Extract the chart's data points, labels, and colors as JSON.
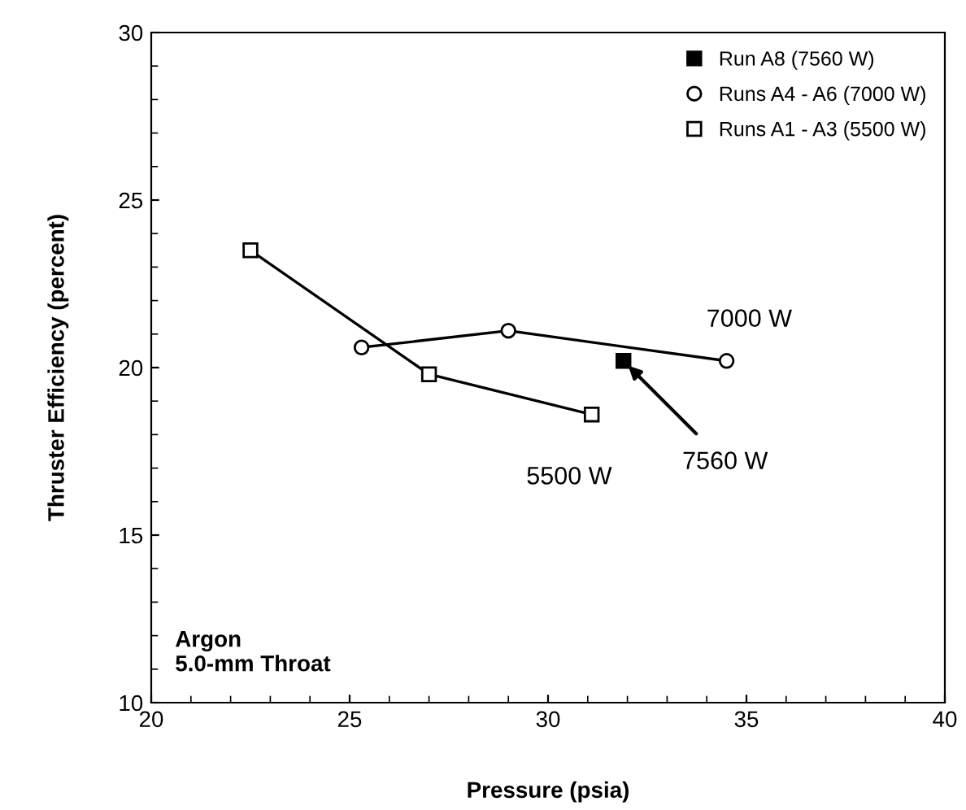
{
  "chart_data": {
    "type": "line",
    "xlabel": "Pressure (psia)",
    "ylabel": "Thruster Efficiency (percent)",
    "xlim": [
      20,
      40
    ],
    "xticks": [
      20,
      25,
      30,
      35,
      40
    ],
    "ylim": [
      10,
      30
    ],
    "yticks": [
      10,
      15,
      20,
      25,
      30
    ],
    "grid": false,
    "legend": "top right",
    "series": [
      {
        "name": "Run A8 (7560 W)",
        "type": "scatter",
        "marker": "square",
        "color": "#000000",
        "x": [
          31.9
        ],
        "values": [
          20.2
        ]
      },
      {
        "name": "Runs A4 - A6 (7000 W)",
        "marker": "circle",
        "color": "#000000",
        "x": [
          25.3,
          29,
          34.5
        ],
        "values": [
          20.6,
          21.1,
          20.2
        ]
      },
      {
        "name": "Runs A1 - A3 (5500 W)",
        "marker": "square",
        "color": "#000000",
        "x": [
          22.5,
          27,
          31.1
        ],
        "values": [
          23.5,
          19.8,
          18.6
        ]
      }
    ],
    "annotations": [
      {
        "text": "7000 W",
        "x": 34.5,
        "y": 20.2
      },
      {
        "text": "7560 W",
        "x": 31.9,
        "y": 20.2
      },
      {
        "text": "5500 W",
        "x": 31.1,
        "y": 18.6
      },
      "Argon\n5.0-mm Throat"
    ]
  }
}
